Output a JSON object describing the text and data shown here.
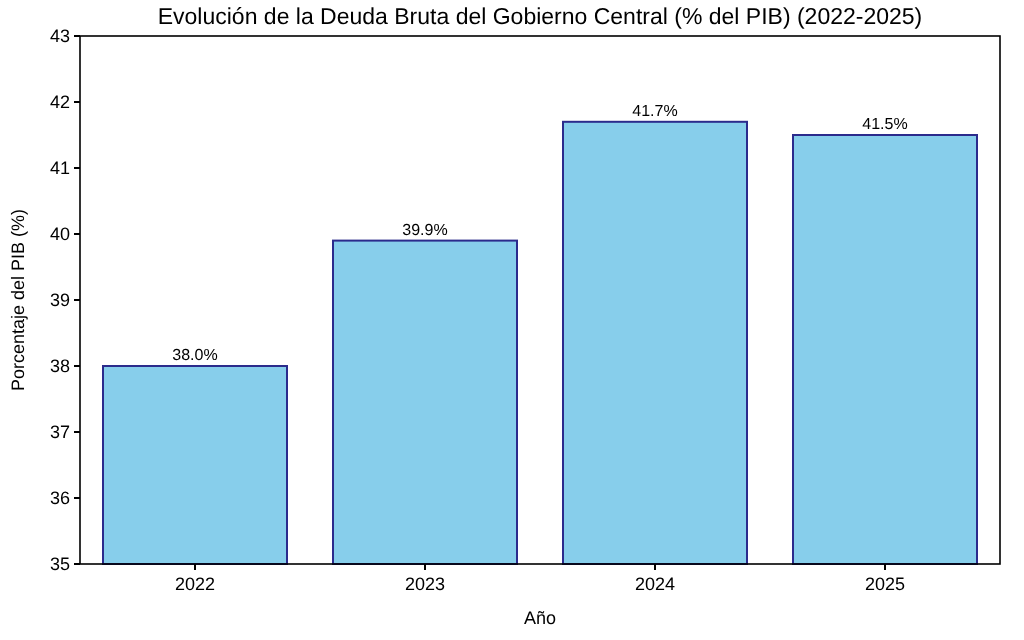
{
  "chart_data": {
    "type": "bar",
    "title": "Evolución de la Deuda Bruta del Gobierno Central (% del PIB) (2022-2025)",
    "xlabel": "Año",
    "ylabel": "Porcentaje del PIB (%)",
    "categories": [
      "2022",
      "2023",
      "2024",
      "2025"
    ],
    "values": [
      38.0,
      39.9,
      41.7,
      41.5
    ],
    "value_labels": [
      "38.0%",
      "39.9%",
      "41.7%",
      "41.5%"
    ],
    "color": "#87ceeb",
    "ylim": [
      35,
      43
    ],
    "yticks": [
      35,
      36,
      37,
      38,
      39,
      40,
      41,
      42,
      43
    ],
    "grid": false
  }
}
